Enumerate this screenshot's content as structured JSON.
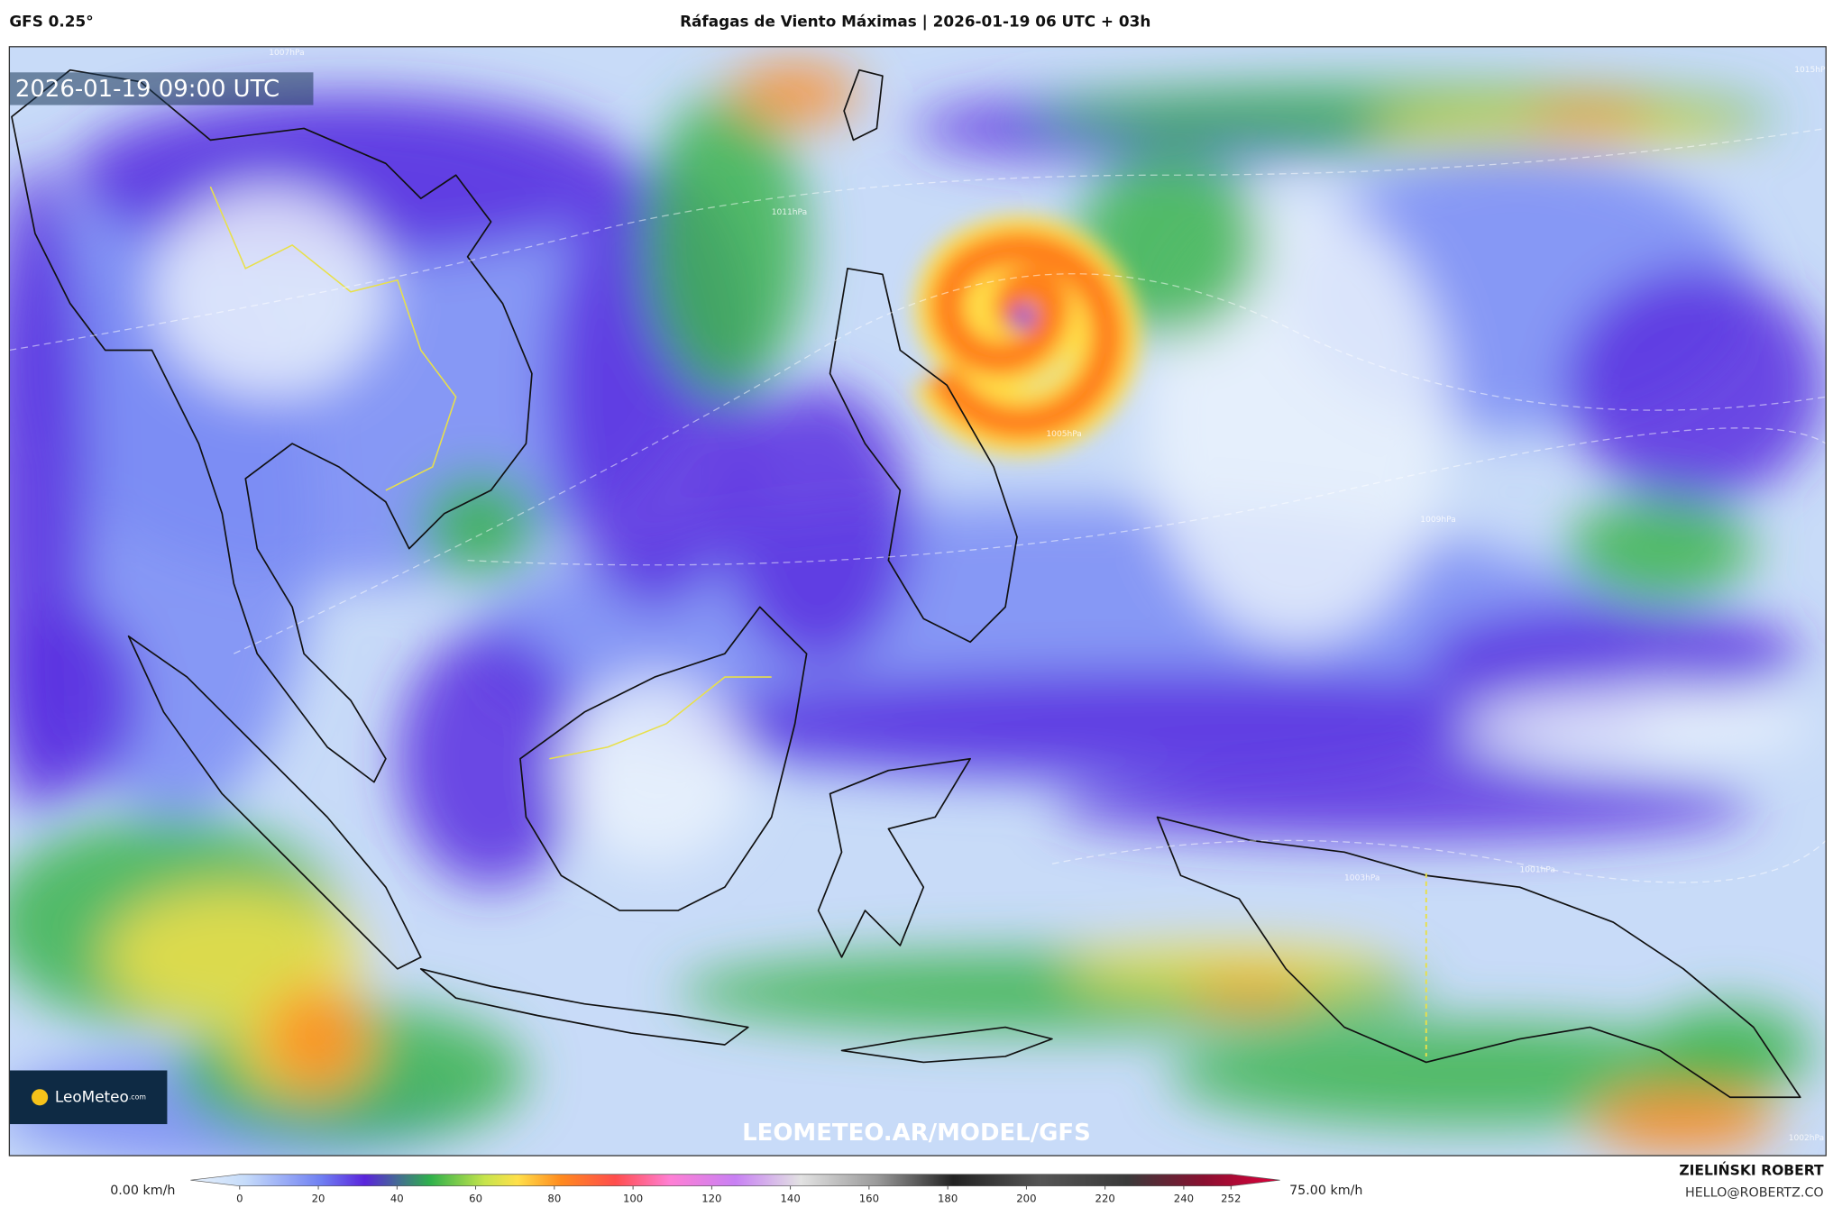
{
  "header": {
    "model": "GFS 0.25°",
    "title": "Ráfagas de Viento Máximas | 2026-01-19 06 UTC + 03h"
  },
  "map": {
    "timestamp": "2026-01-19 09:00 UTC",
    "logo": "LeoMeteo",
    "logo_suffix": ".com",
    "watermark": "LEOMETEO.AR/MODEL/GFS",
    "isobar_labels": [
      "1007hPa",
      "1011hPa",
      "1005hPa",
      "1009hPa",
      "1003hPa",
      "1001hPa",
      "1015hPa",
      "1002hPa"
    ]
  },
  "colorbar": {
    "min_label": "0.00 km/h",
    "max_label": "75.00 km/h",
    "range": [
      0,
      252
    ],
    "ticks": [
      0,
      20,
      40,
      60,
      80,
      100,
      120,
      140,
      160,
      180,
      200,
      220,
      240,
      252
    ]
  },
  "credit": {
    "author": "ZIELIŃSKI ROBERT",
    "email": "HELLO@ROBERTZ.CO"
  }
}
